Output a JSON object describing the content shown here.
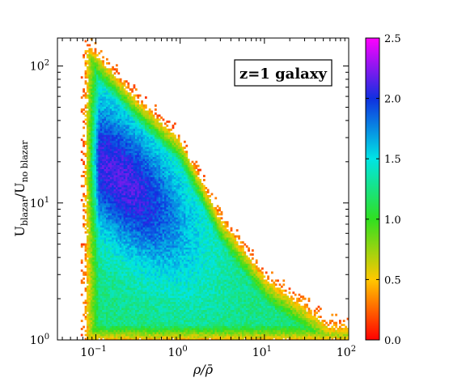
{
  "chart_data": {
    "type": "heatmap",
    "title": "",
    "xlabel": {
      "main": "ρ/ρ̄"
    },
    "ylabel": {
      "main": "U",
      "sub1": "blazar",
      "slash": "/U",
      "sub2": "no blazar"
    },
    "x_scale": "log",
    "y_scale": "log",
    "xlim": [
      0.035,
      100
    ],
    "ylim": [
      1,
      160
    ],
    "x_ticks": [
      {
        "value": 0.1,
        "base": "10",
        "exp": "−1"
      },
      {
        "value": 1,
        "base": "10",
        "exp": "0"
      },
      {
        "value": 10,
        "base": "10",
        "exp": "1"
      },
      {
        "value": 100,
        "base": "10",
        "exp": "2"
      }
    ],
    "y_ticks": [
      {
        "value": 1,
        "base": "10",
        "exp": "0"
      },
      {
        "value": 10,
        "base": "10",
        "exp": "1"
      },
      {
        "value": 100,
        "base": "10",
        "exp": "2"
      }
    ],
    "annotation": "z=1 galaxy",
    "colorbar": {
      "range": [
        0.0,
        2.5
      ],
      "ticks": [
        "0.0",
        "0.5",
        "1.0",
        "1.5",
        "2.0",
        "2.5"
      ],
      "tick_values": [
        0.0,
        0.5,
        1.0,
        1.5,
        2.0,
        2.5
      ],
      "colormap": "gist_rainbow_r (red→yellow→green→cyan→blue→magenta)"
    },
    "distribution": {
      "description": "2D log-density of cells; triangular region with left edge near x≈0.07, bottom edge near y≈1, hypotenuse from (0.08,150) to (60,1.3); peak density ~2.1 near x≈0.2, y≈15",
      "peak": {
        "x": 0.2,
        "y": 15,
        "value": 2.1
      },
      "left_edge_x": 0.075,
      "top_y": 140,
      "hypotenuse": [
        [
          0.08,
          150
        ],
        [
          0.3,
          60
        ],
        [
          1,
          30
        ],
        [
          3,
          8
        ],
        [
          10,
          3
        ],
        [
          30,
          1.8
        ],
        [
          60,
          1.3
        ]
      ]
    }
  }
}
